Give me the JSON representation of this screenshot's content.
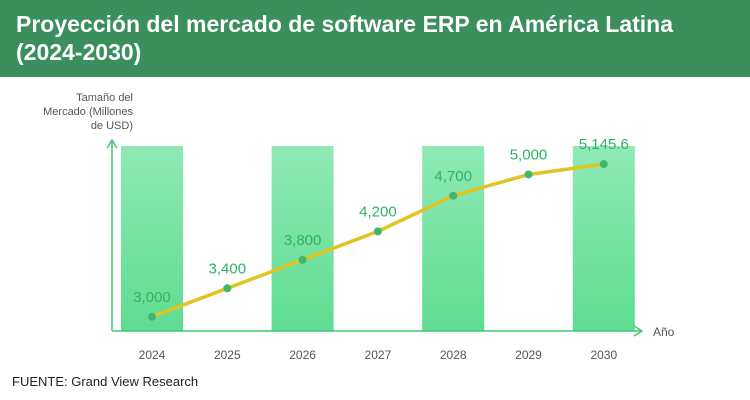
{
  "chart_data": {
    "type": "bar+line",
    "title": "Proyección del mercado de software ERP en América Latina (2024-2030)",
    "ylabel": "Tamaño del Mercado (Millones de USD)",
    "xlabel": "Año",
    "categories": [
      "2024",
      "2025",
      "2026",
      "2027",
      "2028",
      "2029",
      "2030"
    ],
    "series": [
      {
        "values": [
          3000,
          3400,
          3800,
          4200,
          4700,
          5000,
          5145.6
        ]
      }
    ],
    "data_labels": [
      "3,000",
      "3,400",
      "3,800",
      "4,200",
      "4,700",
      "5,000",
      "5,145.6"
    ],
    "ylim": [
      2800,
      5400
    ],
    "grid": false,
    "legend": "none",
    "colors": {
      "header": "#3a8f5c",
      "bar": "#5fdc91",
      "line": "#e0c422",
      "point": "#3fb86d",
      "label": "#2db463",
      "axis": "#3ec96f",
      "tick": "#555555"
    }
  },
  "source": "FUENTE: Grand View Research"
}
